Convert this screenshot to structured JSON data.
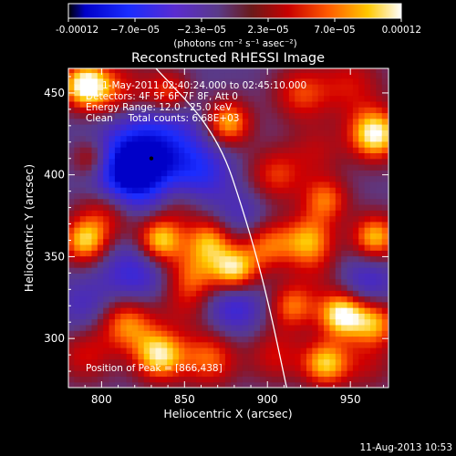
{
  "chart_data": {
    "type": "heatmap",
    "title": "Reconstructed RHESSI Image",
    "xlabel": "Heliocentric X (arcsec)",
    "ylabel": "Heliocentric Y (arcsec)",
    "xlim": [
      780,
      973
    ],
    "ylim": [
      270,
      465
    ],
    "x_ticks": [
      800,
      850,
      900,
      950
    ],
    "y_ticks": [
      300,
      350,
      400,
      450
    ],
    "colorbar": {
      "ticks": [
        "-0.00012",
        "−7.0e−05",
        "−2.3e−05",
        "2.3e−05",
        "7.0e−05",
        "0.00012"
      ],
      "units": "(photons cm⁻² s⁻¹ asec⁻²)",
      "range": [
        -0.00012,
        0.00012
      ]
    },
    "annotations": [
      "1-May-2011 02:40:24.000 to 02:45:10.000",
      "Detectors: 4F 5F 6F 7F 8F, Att 0",
      "Energy Range: 12.0 - 25.0 keV",
      "Clean     Total counts: 6.68E+03"
    ],
    "peak_label": "Position of Peak = [866,438]",
    "marker_point": [
      830,
      410
    ],
    "limb_line": [
      [
        830,
        468
      ],
      [
        870,
        425
      ],
      [
        888,
        370
      ],
      [
        900,
        325
      ],
      [
        912,
        268
      ]
    ],
    "blobs": [
      {
        "x": 790,
        "y": 455,
        "v": 1.0,
        "r": 10
      },
      {
        "x": 810,
        "y": 450,
        "v": 0.5,
        "r": 14
      },
      {
        "x": 840,
        "y": 450,
        "v": 0.6,
        "r": 10
      },
      {
        "x": 876,
        "y": 432,
        "v": 0.8,
        "r": 10
      },
      {
        "x": 920,
        "y": 450,
        "v": 0.5,
        "r": 12
      },
      {
        "x": 950,
        "y": 455,
        "v": 0.4,
        "r": 14
      },
      {
        "x": 965,
        "y": 425,
        "v": 1.0,
        "r": 11
      },
      {
        "x": 930,
        "y": 415,
        "v": 0.3,
        "r": 12
      },
      {
        "x": 795,
        "y": 410,
        "v": 0.6,
        "r": 9
      },
      {
        "x": 830,
        "y": 410,
        "v": -1.0,
        "r": 22
      },
      {
        "x": 815,
        "y": 400,
        "v": -0.8,
        "r": 14
      },
      {
        "x": 860,
        "y": 400,
        "v": -0.4,
        "r": 12
      },
      {
        "x": 905,
        "y": 400,
        "v": 0.5,
        "r": 12
      },
      {
        "x": 805,
        "y": 380,
        "v": 0.6,
        "r": 13
      },
      {
        "x": 845,
        "y": 385,
        "v": 0.5,
        "r": 13
      },
      {
        "x": 935,
        "y": 385,
        "v": 0.6,
        "r": 10
      },
      {
        "x": 885,
        "y": 375,
        "v": -0.3,
        "r": 12
      },
      {
        "x": 790,
        "y": 360,
        "v": 0.8,
        "r": 10
      },
      {
        "x": 835,
        "y": 360,
        "v": 0.9,
        "r": 10
      },
      {
        "x": 865,
        "y": 360,
        "v": 0.7,
        "r": 10
      },
      {
        "x": 900,
        "y": 358,
        "v": 0.6,
        "r": 11
      },
      {
        "x": 925,
        "y": 360,
        "v": 0.7,
        "r": 11
      },
      {
        "x": 965,
        "y": 362,
        "v": 0.8,
        "r": 10
      },
      {
        "x": 820,
        "y": 340,
        "v": -0.5,
        "r": 14
      },
      {
        "x": 855,
        "y": 340,
        "v": 0.5,
        "r": 11
      },
      {
        "x": 880,
        "y": 342,
        "v": 0.9,
        "r": 10
      },
      {
        "x": 930,
        "y": 340,
        "v": 0.2,
        "r": 12
      },
      {
        "x": 960,
        "y": 335,
        "v": -0.4,
        "r": 12
      },
      {
        "x": 790,
        "y": 320,
        "v": -0.3,
        "r": 12
      },
      {
        "x": 815,
        "y": 310,
        "v": 0.7,
        "r": 12
      },
      {
        "x": 850,
        "y": 322,
        "v": 0.3,
        "r": 12
      },
      {
        "x": 880,
        "y": 320,
        "v": -0.5,
        "r": 12
      },
      {
        "x": 915,
        "y": 320,
        "v": 0.6,
        "r": 10
      },
      {
        "x": 945,
        "y": 315,
        "v": 1.0,
        "r": 10
      },
      {
        "x": 965,
        "y": 310,
        "v": 0.7,
        "r": 10
      },
      {
        "x": 790,
        "y": 290,
        "v": 0.4,
        "r": 12
      },
      {
        "x": 835,
        "y": 290,
        "v": 0.9,
        "r": 11
      },
      {
        "x": 865,
        "y": 288,
        "v": 0.6,
        "r": 12
      },
      {
        "x": 905,
        "y": 290,
        "v": 0.4,
        "r": 12
      },
      {
        "x": 935,
        "y": 285,
        "v": 0.8,
        "r": 10
      },
      {
        "x": 960,
        "y": 285,
        "v": 0.3,
        "r": 12
      }
    ]
  },
  "footer": {
    "timestamp": "11-Aug-2013 10:53"
  }
}
